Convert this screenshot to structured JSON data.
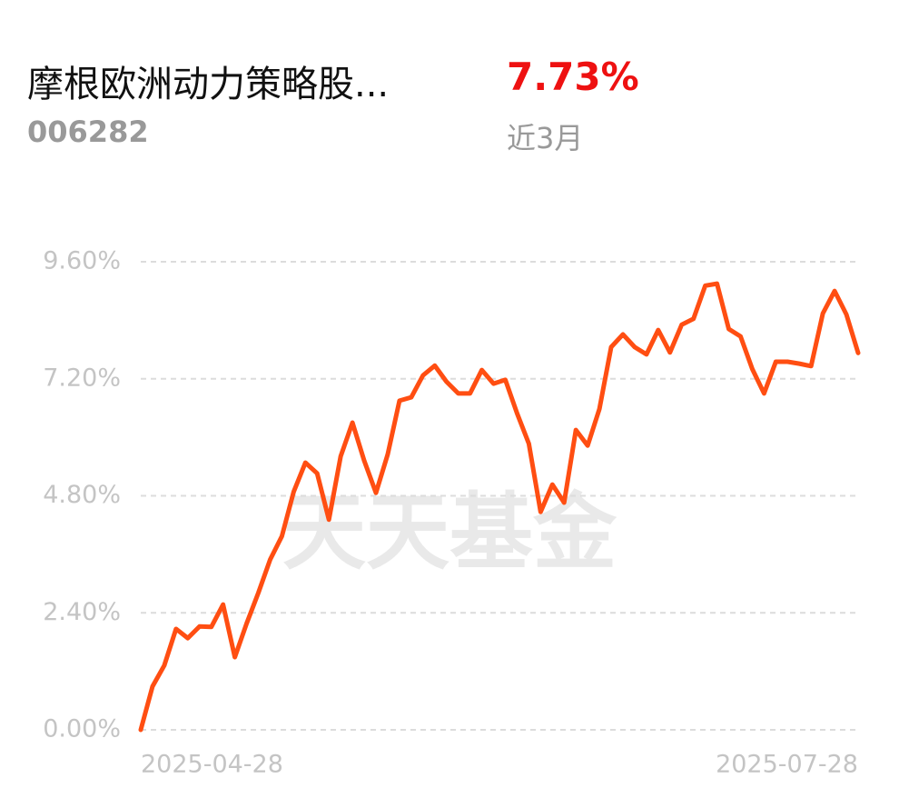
{
  "fund_name": "摩根欧洲动力策略股...",
  "fund_code": "006282",
  "return": "7.73%",
  "period": "近3月",
  "chart_data": {
    "type": "line",
    "watermark": "天天基金",
    "categories": [
      "2025-04-28",
      null,
      null,
      null,
      null,
      null,
      null,
      null,
      null,
      null,
      null,
      null,
      null,
      null,
      null,
      null,
      null,
      null,
      null,
      null,
      null,
      null,
      null,
      null,
      null,
      null,
      null,
      null,
      null,
      null,
      null,
      null,
      null,
      null,
      null,
      null,
      null,
      null,
      null,
      null,
      null,
      null,
      null,
      null,
      null,
      null,
      null,
      null,
      null,
      null,
      null,
      null,
      null,
      null,
      null,
      null,
      null,
      null,
      null,
      null,
      null,
      "2025-07-28"
    ],
    "series": [
      {
        "name": "摩根欧洲动力策略股...",
        "color": "#ff4e12",
        "values": [
          0,
          0.89,
          1.32,
          2.07,
          1.88,
          2.12,
          2.11,
          2.57,
          1.49,
          2.18,
          2.81,
          3.49,
          3.97,
          4.88,
          5.48,
          5.26,
          4.31,
          5.61,
          6.3,
          5.52,
          4.86,
          5.65,
          6.75,
          6.82,
          7.27,
          7.47,
          7.14,
          6.9,
          6.9,
          7.38,
          7.1,
          7.18,
          6.49,
          5.87,
          4.47,
          5.03,
          4.66,
          6.15,
          5.83,
          6.58,
          7.85,
          8.11,
          7.85,
          7.7,
          8.2,
          7.74,
          8.31,
          8.43,
          9.11,
          9.15,
          8.22,
          8.07,
          7.4,
          6.9,
          7.55,
          7.55,
          7.51,
          7.46,
          8.54,
          9.0,
          8.52,
          7.73
        ]
      }
    ],
    "ylim": [
      0,
      9.6
    ],
    "yticks": [
      {
        "value": 0,
        "label": "0.00%"
      },
      {
        "value": 2.4,
        "label": "2.40%"
      },
      {
        "value": 4.8,
        "label": "4.80%"
      },
      {
        "value": 7.2,
        "label": "7.20%"
      },
      {
        "value": 9.6,
        "label": "9.60%"
      }
    ],
    "grid": true
  }
}
